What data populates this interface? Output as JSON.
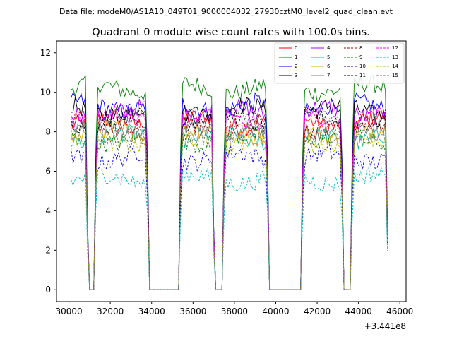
{
  "suptitle": "Data file: modeM0/AS1A10_049T01_9000004032_27930cztM0_level2_quad_clean.evt",
  "chart_data": {
    "type": "line",
    "title": "Quadrant 0 module wise count rates with 100.0s bins.",
    "xlabel": "",
    "ylabel": "",
    "offset_label": "+3.441e8",
    "xlim": [
      29400,
      46300
    ],
    "ylim": [
      -0.6,
      12.6
    ],
    "x_ticks": [
      30000,
      32000,
      34000,
      36000,
      38000,
      40000,
      42000,
      44000,
      46000
    ],
    "x_tick_labels": [
      "30000",
      "32000",
      "34000",
      "36000",
      "38000",
      "40000",
      "42000",
      "44000",
      "46000"
    ],
    "y_ticks": [
      0,
      2,
      4,
      6,
      8,
      10,
      12
    ],
    "y_tick_labels": [
      "0",
      "2",
      "4",
      "6",
      "8",
      "10",
      "12"
    ],
    "x_range": [
      30100,
      45400
    ],
    "bin_width_s": 100,
    "segments": [
      {
        "start": 30100,
        "end": 30800
      },
      {
        "start": 31350,
        "end": 33750
      },
      {
        "start": 35450,
        "end": 36900
      },
      {
        "start": 37550,
        "end": 39550
      },
      {
        "start": 41350,
        "end": 43150
      },
      {
        "start": 43750,
        "end": 45300
      }
    ],
    "series": [
      {
        "name": "0",
        "level": 8.5,
        "color": "#ff0000",
        "style": "solid"
      },
      {
        "name": "1",
        "level": 10.2,
        "color": "#008000",
        "style": "solid"
      },
      {
        "name": "2",
        "level": 9.3,
        "color": "#0000ff",
        "style": "solid"
      },
      {
        "name": "3",
        "level": 9.1,
        "color": "#000000",
        "style": "solid"
      },
      {
        "name": "4",
        "level": 9.0,
        "color": "#aa00ff",
        "style": "solid"
      },
      {
        "name": "5",
        "level": 7.7,
        "color": "#00c0a0",
        "style": "solid"
      },
      {
        "name": "6",
        "level": 7.9,
        "color": "#ddaa00",
        "style": "solid"
      },
      {
        "name": "7",
        "level": 8.1,
        "color": "#808080",
        "style": "solid"
      },
      {
        "name": "8",
        "level": 8.3,
        "color": "#aa0000",
        "style": "dashed"
      },
      {
        "name": "9",
        "level": 7.6,
        "color": "#007700",
        "style": "dashed"
      },
      {
        "name": "10",
        "level": 6.7,
        "color": "#0000dd",
        "style": "dashed"
      },
      {
        "name": "11",
        "level": 8.6,
        "color": "#000000",
        "style": "dashed"
      },
      {
        "name": "12",
        "level": 8.7,
        "color": "#ff00ff",
        "style": "dashed"
      },
      {
        "name": "13",
        "level": 5.6,
        "color": "#00bbbb",
        "style": "dashed"
      },
      {
        "name": "14",
        "level": 7.5,
        "color": "#bbbb00",
        "style": "dashed"
      },
      {
        "name": "15",
        "level": 7.9,
        "color": "#777777",
        "style": "dashed"
      }
    ]
  }
}
